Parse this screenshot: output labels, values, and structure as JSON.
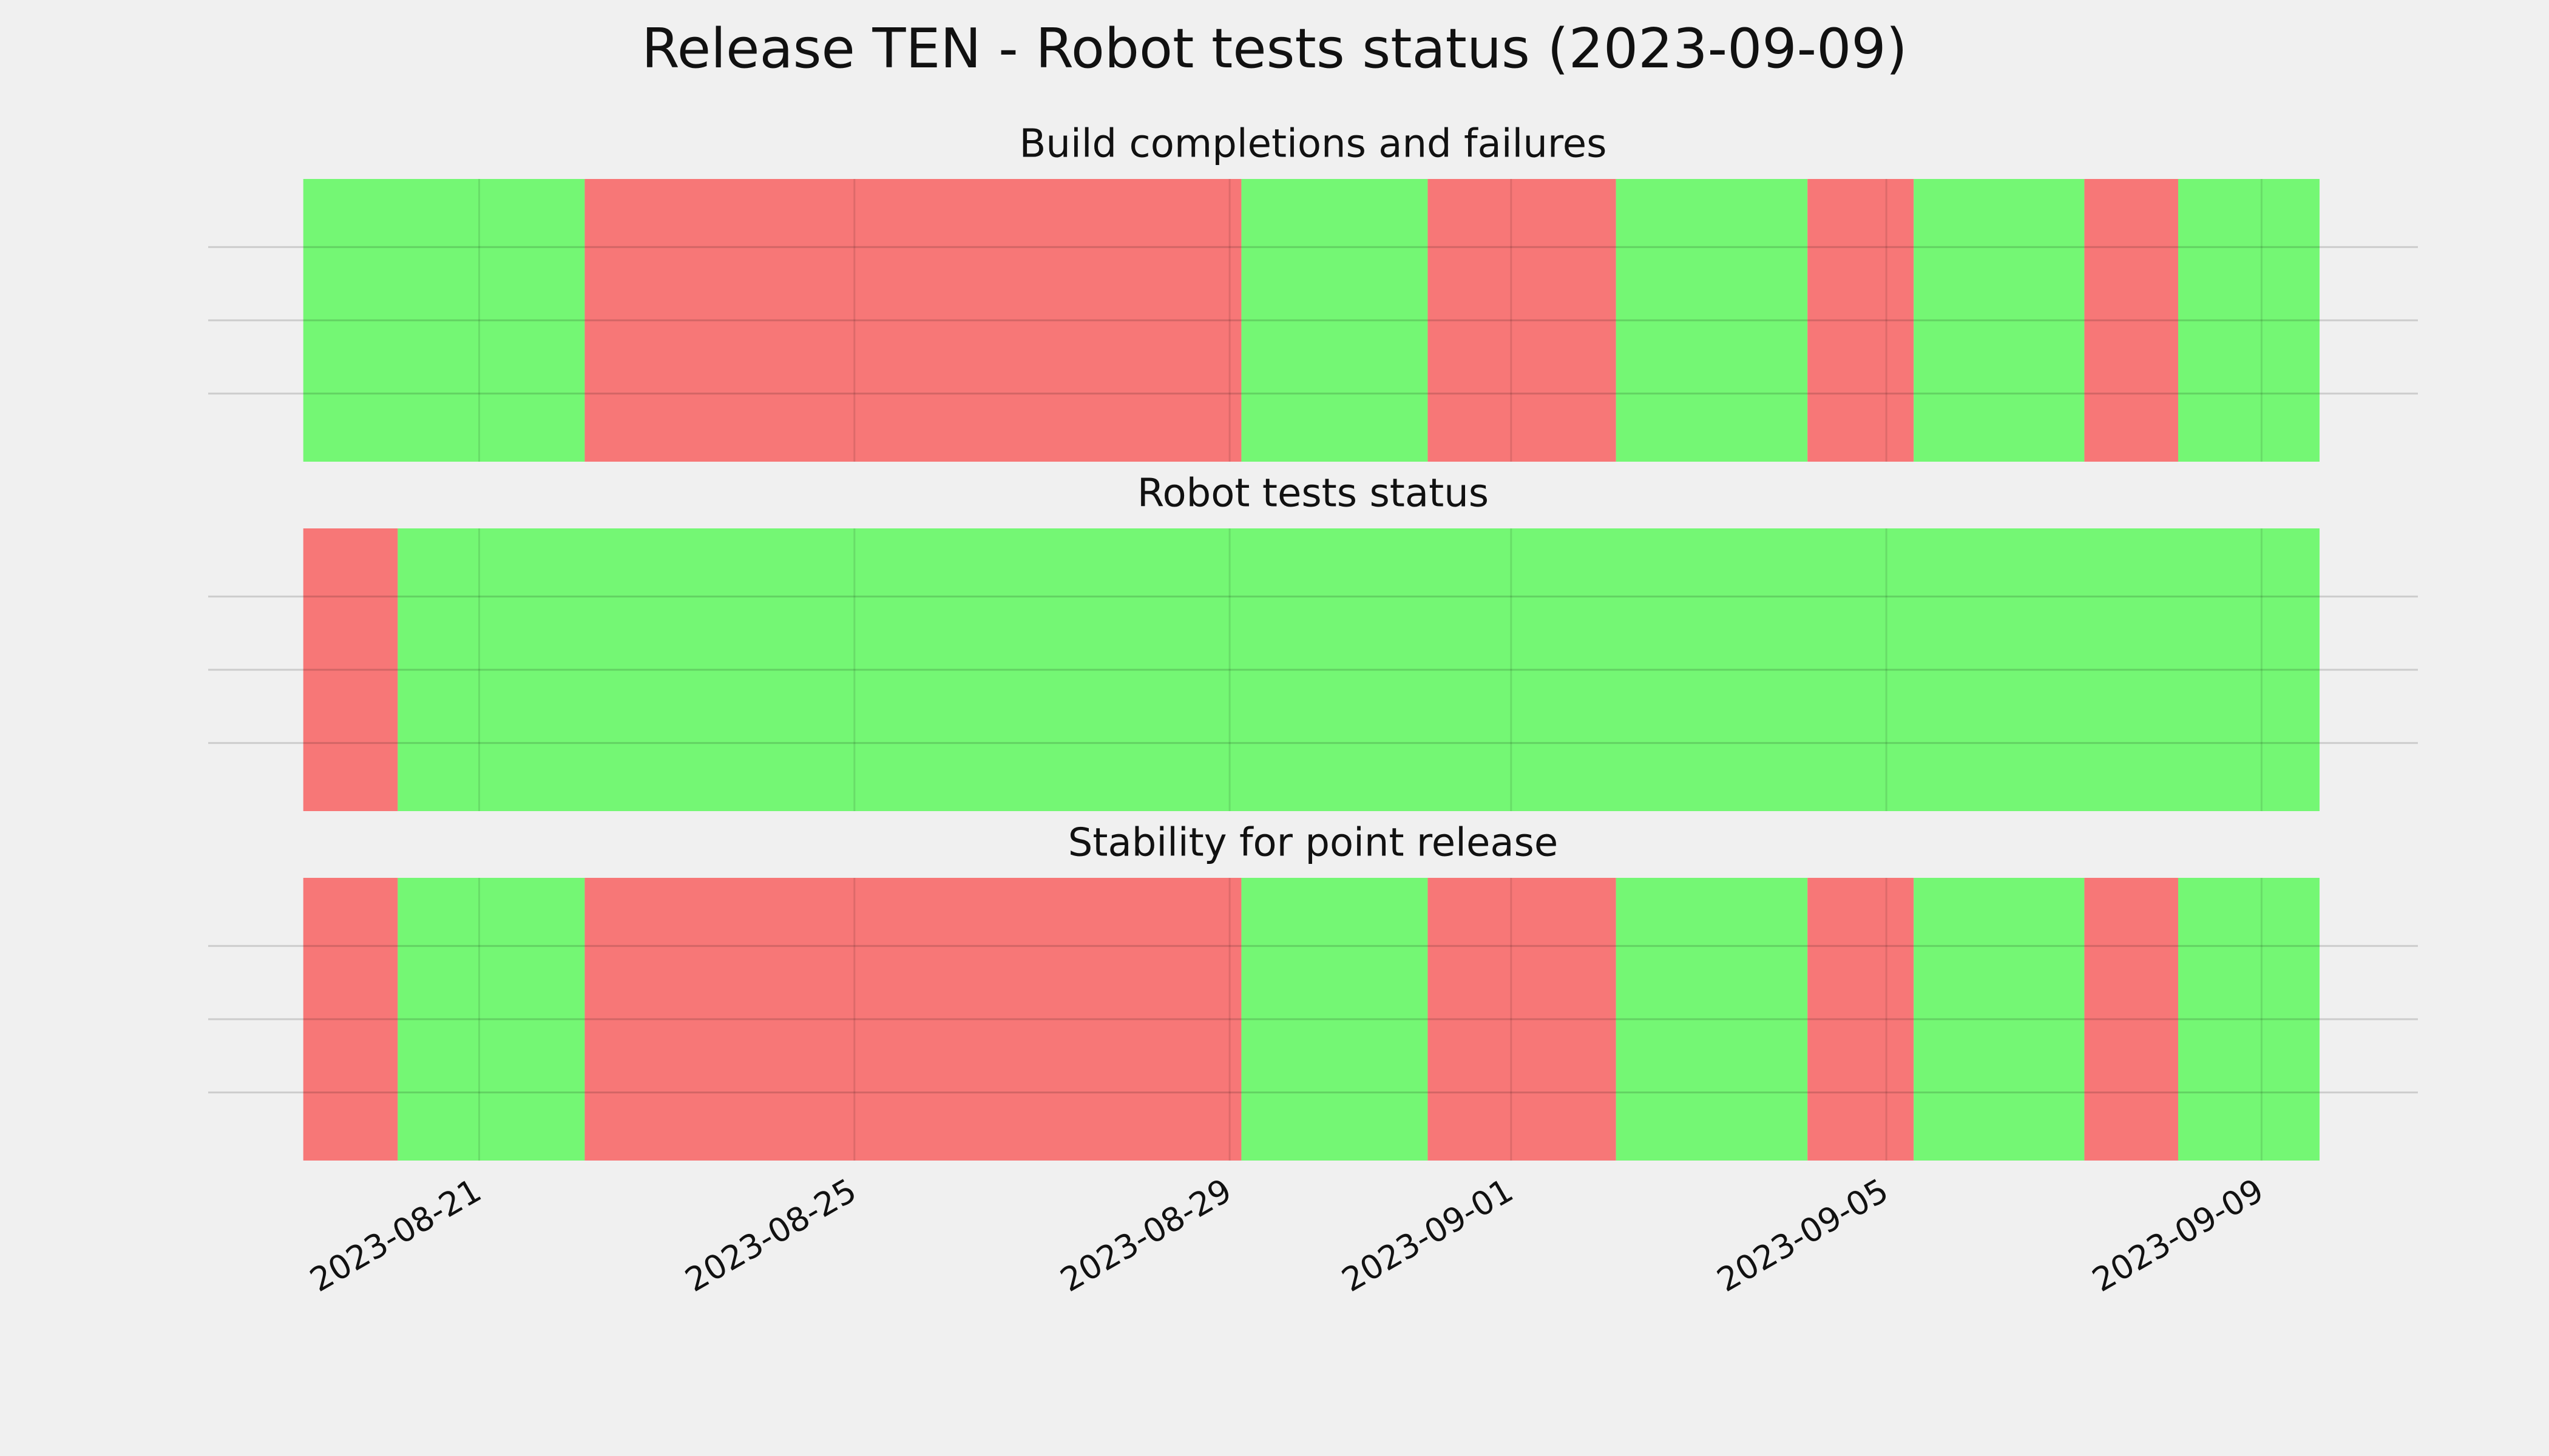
{
  "title": "Release TEN - Robot tests status (2023-09-09)",
  "chart_data": [
    {
      "type": "timeline",
      "title": "Build completions and failures",
      "xlim": [
        "2023-08-18T02:40",
        "2023-09-10T16:00"
      ],
      "xticks": [
        "2023-08-21",
        "2023-08-25",
        "2023-08-29",
        "2023-09-01",
        "2023-09-05",
        "2023-09-09"
      ],
      "grid": true,
      "segments": [
        {
          "start": "2023-08-19T03:00",
          "end": "2023-08-22T03:00",
          "color": "#74f774"
        },
        {
          "start": "2023-08-22T03:00",
          "end": "2023-08-29T03:00",
          "color": "#f77777"
        },
        {
          "start": "2023-08-29T03:00",
          "end": "2023-08-31T02:40",
          "color": "#74f774"
        },
        {
          "start": "2023-08-31T02:40",
          "end": "2023-09-02T02:50",
          "color": "#f77777"
        },
        {
          "start": "2023-09-02T02:50",
          "end": "2023-09-04T03:50",
          "color": "#74f774"
        },
        {
          "start": "2023-09-04T03:50",
          "end": "2023-09-05T07:00",
          "color": "#f77777"
        },
        {
          "start": "2023-09-05T07:00",
          "end": "2023-09-07T02:40",
          "color": "#74f774"
        },
        {
          "start": "2023-09-07T02:40",
          "end": "2023-09-08T02:40",
          "color": "#f77777"
        },
        {
          "start": "2023-09-08T02:40",
          "end": "2023-09-09T14:50",
          "color": "#74f774"
        }
      ]
    },
    {
      "type": "timeline",
      "title": "Robot tests status",
      "xlim": [
        "2023-08-18T02:40",
        "2023-09-10T16:00"
      ],
      "xticks": [
        "2023-08-21",
        "2023-08-25",
        "2023-08-29",
        "2023-09-01",
        "2023-09-05",
        "2023-09-09"
      ],
      "grid": true,
      "segments": [
        {
          "start": "2023-08-19T03:00",
          "end": "2023-08-20T03:10",
          "color": "#f77777"
        },
        {
          "start": "2023-08-20T03:10",
          "end": "2023-09-09T14:50",
          "color": "#74f774"
        }
      ]
    },
    {
      "type": "timeline",
      "title": "Stability for point release",
      "xlim": [
        "2023-08-18T02:40",
        "2023-09-10T16:00"
      ],
      "xticks": [
        "2023-08-21",
        "2023-08-25",
        "2023-08-29",
        "2023-09-01",
        "2023-09-05",
        "2023-09-09"
      ],
      "grid": true,
      "segments": [
        {
          "start": "2023-08-19T03:00",
          "end": "2023-08-20T03:10",
          "color": "#f77777"
        },
        {
          "start": "2023-08-20T03:10",
          "end": "2023-08-22T03:00",
          "color": "#74f774"
        },
        {
          "start": "2023-08-22T03:00",
          "end": "2023-08-29T03:00",
          "color": "#f77777"
        },
        {
          "start": "2023-08-29T03:00",
          "end": "2023-08-31T02:40",
          "color": "#74f774"
        },
        {
          "start": "2023-08-31T02:40",
          "end": "2023-09-02T02:50",
          "color": "#f77777"
        },
        {
          "start": "2023-09-02T02:50",
          "end": "2023-09-04T03:50",
          "color": "#74f774"
        },
        {
          "start": "2023-09-04T03:50",
          "end": "2023-09-05T07:00",
          "color": "#f77777"
        },
        {
          "start": "2023-09-05T07:00",
          "end": "2023-09-07T02:40",
          "color": "#74f774"
        },
        {
          "start": "2023-09-07T02:40",
          "end": "2023-09-08T02:40",
          "color": "#f77777"
        },
        {
          "start": "2023-09-08T02:40",
          "end": "2023-09-09T14:50",
          "color": "#74f774"
        }
      ]
    }
  ]
}
